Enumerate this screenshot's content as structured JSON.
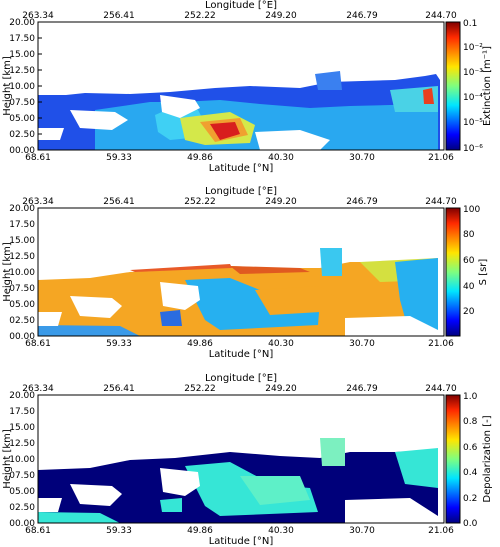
{
  "chart_data": [
    {
      "type": "heatmap",
      "xlabel": "Latitude [°N]",
      "x2label": "Longitude [°E]",
      "ylabel": "Height [km]",
      "xticks": [
        "68.61",
        "59.33",
        "49.86",
        "40.30",
        "30.70",
        "21.06"
      ],
      "x2ticks": [
        "263.34",
        "256.41",
        "252.22",
        "249.20",
        "246.79",
        "244.70"
      ],
      "yticks": [
        "20.00",
        "17.50",
        "15.00",
        "12.50",
        "10.00",
        "07.50",
        "05.00",
        "02.50",
        "00.00"
      ],
      "ylim": [
        0,
        20
      ],
      "colorbar": {
        "label": "Extinction [m⁻¹]",
        "scale": "log",
        "range": [
          1e-06,
          0.1
        ],
        "ticks": [
          "0.1",
          "10⁻²",
          "10⁻³",
          "10⁻⁴",
          "10⁻⁵",
          "10⁻⁶"
        ],
        "colormap": "jet"
      },
      "dominant_color": "#1f3fe0"
    },
    {
      "type": "heatmap",
      "xlabel": "Latitude [°N]",
      "x2label": "Longitude [°E]",
      "ylabel": "Height [km]",
      "xticks": [
        "68.61",
        "59.33",
        "49.86",
        "40.30",
        "30.70",
        "21.06"
      ],
      "x2ticks": [
        "263.34",
        "256.41",
        "252.22",
        "249.20",
        "246.79",
        "244.70"
      ],
      "yticks": [
        "20.00",
        "17.50",
        "15.00",
        "12.50",
        "10.00",
        "07.50",
        "05.00",
        "02.50",
        "00.00"
      ],
      "ylim": [
        0,
        20
      ],
      "colorbar": {
        "label": "S [sr]",
        "scale": "linear",
        "range": [
          0,
          100
        ],
        "ticks": [
          "100",
          "80",
          "60",
          "40",
          "20"
        ],
        "colormap": "jet"
      },
      "dominant_color": "#f5a623"
    },
    {
      "type": "heatmap",
      "xlabel": "Latitude [°N]",
      "x2label": "Longitude [°E]",
      "ylabel": "Height [km]",
      "xticks": [
        "68.61",
        "59.33",
        "49.86",
        "40.30",
        "30.70",
        "21.06"
      ],
      "x2ticks": [
        "263.34",
        "256.41",
        "252.22",
        "249.20",
        "246.79",
        "244.70"
      ],
      "yticks": [
        "20.00",
        "17.50",
        "15.00",
        "12.50",
        "10.00",
        "07.50",
        "05.00",
        "02.50",
        "00.00"
      ],
      "ylim": [
        0,
        20
      ],
      "colorbar": {
        "label": "Depolarization [-]",
        "scale": "linear",
        "range": [
          0,
          1.0
        ],
        "ticks": [
          "1.0",
          "0.8",
          "0.6",
          "0.4",
          "0.2",
          "0.0"
        ],
        "colormap": "jet"
      },
      "dominant_color": "#00007a"
    }
  ]
}
